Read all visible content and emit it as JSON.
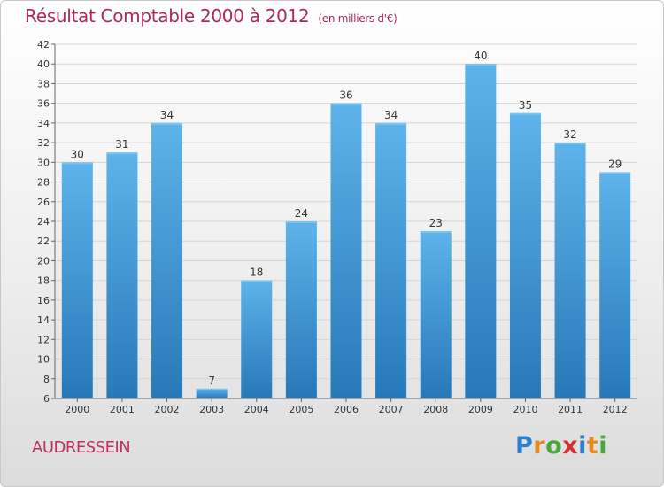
{
  "header": {
    "title": "Résultat Comptable 2000 à 2012",
    "subtitle": "(en milliers d'€)"
  },
  "footer": {
    "commune": "AUDRESSEIN",
    "logo_letters": [
      "P",
      "r",
      "o",
      "x",
      "i",
      "t",
      "i"
    ],
    "logo_colors": [
      "#2c7fcf",
      "#e58a1c",
      "#4aa83a",
      "#d6302f",
      "#2c7fcf",
      "#e58a1c",
      "#4aa83a"
    ]
  },
  "colors": {
    "bar_top": "#5db3ea",
    "bar_bottom": "#2778b8",
    "grid": "#d4d4d4",
    "axis": "#666666",
    "text": "#333333"
  },
  "chart_data": {
    "type": "bar",
    "title": "Résultat Comptable 2000 à 2012",
    "xlabel": "",
    "ylabel": "",
    "categories": [
      "2000",
      "2001",
      "2002",
      "2003",
      "2004",
      "2005",
      "2006",
      "2007",
      "2008",
      "2009",
      "2010",
      "2011",
      "2012"
    ],
    "values": [
      30,
      31,
      34,
      7,
      18,
      24,
      36,
      34,
      23,
      40,
      35,
      32,
      29
    ],
    "ylim": [
      6,
      42
    ],
    "yticks": [
      6,
      8,
      10,
      12,
      14,
      16,
      18,
      20,
      22,
      24,
      26,
      28,
      30,
      32,
      34,
      36,
      38,
      40,
      42
    ],
    "grid": true,
    "data_labels": true
  }
}
